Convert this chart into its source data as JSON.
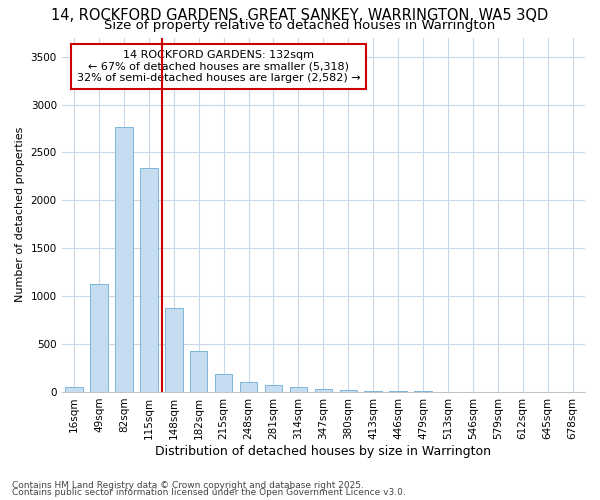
{
  "title1": "14, ROCKFORD GARDENS, GREAT SANKEY, WARRINGTON, WA5 3QD",
  "title2": "Size of property relative to detached houses in Warrington",
  "xlabel": "Distribution of detached houses by size in Warrington",
  "ylabel": "Number of detached properties",
  "categories": [
    "16sqm",
    "49sqm",
    "82sqm",
    "115sqm",
    "148sqm",
    "182sqm",
    "215sqm",
    "248sqm",
    "281sqm",
    "314sqm",
    "347sqm",
    "380sqm",
    "413sqm",
    "446sqm",
    "479sqm",
    "513sqm",
    "546sqm",
    "579sqm",
    "612sqm",
    "645sqm",
    "678sqm"
  ],
  "values": [
    50,
    1130,
    2770,
    2340,
    880,
    430,
    190,
    105,
    75,
    50,
    35,
    25,
    15,
    8,
    5,
    3,
    2,
    2,
    1,
    1,
    1
  ],
  "bar_color": "#c6dcf0",
  "bar_edge_color": "#6baed6",
  "vline_color": "#cc0000",
  "vline_x": 3.52,
  "annotation_text": "14 ROCKFORD GARDENS: 132sqm\n← 67% of detached houses are smaller (5,318)\n32% of semi-detached houses are larger (2,582) →",
  "annotation_box_color": "#ffffff",
  "annotation_border_color": "#cc0000",
  "ylim": [
    0,
    3700
  ],
  "yticks": [
    0,
    500,
    1000,
    1500,
    2000,
    2500,
    3000,
    3500
  ],
  "footnote1": "Contains HM Land Registry data © Crown copyright and database right 2025.",
  "footnote2": "Contains public sector information licensed under the Open Government Licence v3.0.",
  "bg_color": "#ffffff",
  "plot_bg_color": "#ffffff",
  "grid_color": "#c8d8e8",
  "title1_fontsize": 10.5,
  "title2_fontsize": 9.5,
  "xlabel_fontsize": 9,
  "ylabel_fontsize": 8,
  "tick_fontsize": 7.5,
  "annotation_fontsize": 8,
  "footnote_fontsize": 6.5
}
